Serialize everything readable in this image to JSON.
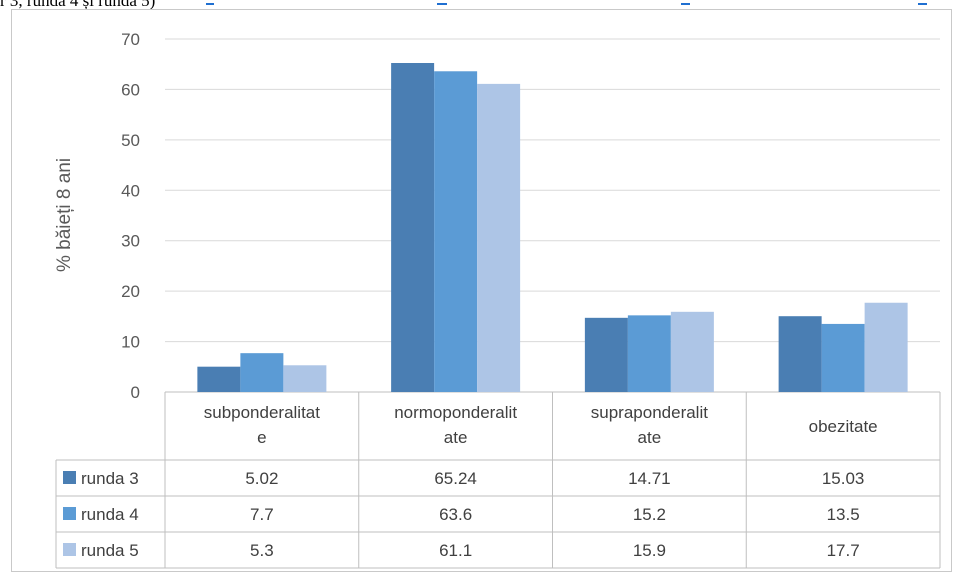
{
  "header_fragment": "r 3, runda 4 și runda 5)",
  "chart_data": {
    "type": "bar",
    "title": "",
    "xlabel": "",
    "ylabel": "% băieți 8 ani",
    "ylim": [
      0,
      70
    ],
    "yticks": [
      0,
      10,
      20,
      30,
      40,
      50,
      60,
      70
    ],
    "grid": true,
    "legend": "data-table",
    "categories": [
      [
        "subponderalitat",
        "e"
      ],
      [
        "normoponderalit",
        "ate"
      ],
      [
        "supraponderalit",
        "ate"
      ],
      [
        "obezitate"
      ]
    ],
    "series": [
      {
        "name": "runda 3",
        "color": "#4a7eb3",
        "values": [
          5.02,
          65.24,
          14.71,
          15.03
        ],
        "labels": [
          "5.02",
          "65.24",
          "14.71",
          "15.03"
        ]
      },
      {
        "name": "runda 4",
        "color": "#5b9bd5",
        "values": [
          7.7,
          63.6,
          15.2,
          13.5
        ],
        "labels": [
          "7.7",
          "63.6",
          "15.2",
          "13.5"
        ]
      },
      {
        "name": "runda 5",
        "color": "#adc5e6",
        "values": [
          5.3,
          61.1,
          15.9,
          17.7
        ],
        "labels": [
          "5.3",
          "61.1",
          "15.9",
          "17.7"
        ]
      }
    ]
  },
  "colors": {
    "grid": "#d9d9d9",
    "table_border": "#bfbfbf",
    "accent": "#1f6fd1"
  }
}
